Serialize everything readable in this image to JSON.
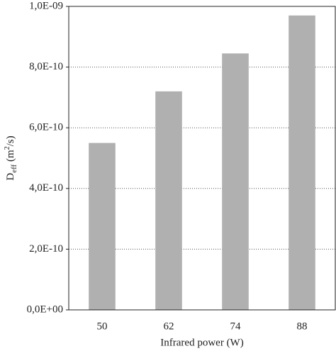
{
  "chart_data": {
    "type": "bar",
    "categories": [
      "50",
      "62",
      "74",
      "88"
    ],
    "values": [
      5.5e-10,
      7.2e-10,
      8.45e-10,
      9.7e-10
    ],
    "color": "#b0b0b0",
    "xlabel": "Infrared power (W)",
    "ylabel": [
      "D",
      "eff",
      " (m",
      "2",
      "/s)"
    ],
    "ylim": [
      0,
      1e-09
    ],
    "yticks": [
      {
        "value": 0,
        "label": "0,0E+00"
      },
      {
        "value": 2e-10,
        "label": "2,0E-10"
      },
      {
        "value": 4e-10,
        "label": "4,0E-10"
      },
      {
        "value": 6e-10,
        "label": "6,0E-10"
      },
      {
        "value": 8e-10,
        "label": "8,0E-10"
      },
      {
        "value": 1e-09,
        "label": "1,0E-09"
      }
    ],
    "grid": true
  }
}
